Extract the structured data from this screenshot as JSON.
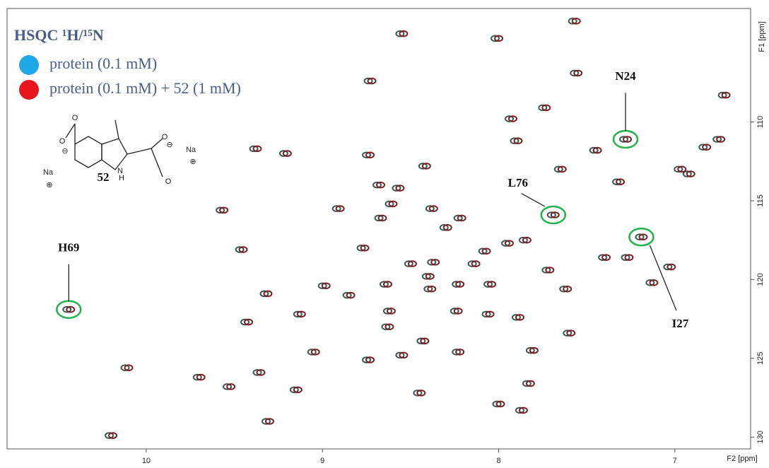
{
  "chart_data": {
    "type": "scatter",
    "legend_title": "HSQC ¹H/¹⁵N",
    "xlabel": "F2 [ppm]",
    "ylabel": "F1 [ppm]",
    "xlim": [
      10.79,
      6.57
    ],
    "ylim": [
      102.8,
      130.75
    ],
    "xticks": [
      10,
      9,
      8,
      7
    ],
    "yticks": [
      110,
      115,
      120,
      125,
      130
    ],
    "series": [
      {
        "name": "protein (0.1 mM)",
        "color": "#1fa8e8",
        "contour_color": "#3d5656",
        "x": [
          8.56,
          8.02,
          7.58,
          8.74,
          7.57,
          7.75,
          7.94,
          7.91,
          6.73,
          7.29,
          6.76,
          6.84,
          7.46,
          9.39,
          9.22,
          8.75,
          8.43,
          7.66,
          6.98,
          6.93,
          7.33,
          8.58,
          8.69,
          9.58,
          8.92,
          8.62,
          8.39,
          8.68,
          8.31,
          8.23,
          7.7,
          7.96,
          7.86,
          7.2,
          9.47,
          8.78,
          8.51,
          8.38,
          8.15,
          8.09,
          7.73,
          7.41,
          7.28,
          7.04,
          7.63,
          7.14,
          8.41,
          8.24,
          8.06,
          9.33,
          9.0,
          8.65,
          8.4,
          8.86,
          9.14,
          8.63,
          8.25,
          8.07,
          7.9,
          9.44,
          8.64,
          8.44,
          7.61,
          9.06,
          8.75,
          8.56,
          8.24,
          7.82,
          10.12,
          9.71,
          9.37,
          9.54,
          9.16,
          8.46,
          7.84,
          8.01,
          7.88,
          9.32,
          10.21,
          10.45
        ],
        "values": [
          104.4,
          104.7,
          103.6,
          107.4,
          106.9,
          109.1,
          109.8,
          111.2,
          108.3,
          111.1,
          111.1,
          111.6,
          111.8,
          111.7,
          112.0,
          112.1,
          112.8,
          113.0,
          113.0,
          113.3,
          113.8,
          114.2,
          114.0,
          115.6,
          115.5,
          115.2,
          115.5,
          116.1,
          116.7,
          116.1,
          115.9,
          117.7,
          117.5,
          117.3,
          118.1,
          118.0,
          119.0,
          118.9,
          119.0,
          118.2,
          119.4,
          118.6,
          118.6,
          119.2,
          120.6,
          120.2,
          119.8,
          120.3,
          120.3,
          120.9,
          120.4,
          120.3,
          120.6,
          121.0,
          122.2,
          122.0,
          122.0,
          122.2,
          122.4,
          122.7,
          123.0,
          123.9,
          123.4,
          124.6,
          125.1,
          124.8,
          124.6,
          124.5,
          125.6,
          126.2,
          125.9,
          126.8,
          127.0,
          127.2,
          126.6,
          127.9,
          128.3,
          129.0,
          129.9,
          121.9
        ]
      },
      {
        "name": "protein (0.1 mM) + 52  (1 mM)",
        "color": "#e8141c",
        "contour_color": "#7a1f24",
        "x": [
          8.54,
          8.0,
          7.56,
          8.72,
          7.55,
          7.73,
          7.92,
          7.89,
          6.71,
          7.27,
          6.74,
          6.82,
          7.44,
          9.37,
          9.2,
          8.73,
          8.41,
          7.64,
          6.96,
          6.91,
          7.31,
          8.56,
          8.67,
          9.56,
          8.9,
          8.6,
          8.37,
          8.66,
          8.29,
          8.21,
          7.68,
          7.94,
          7.84,
          7.18,
          9.45,
          8.76,
          8.49,
          8.36,
          8.13,
          8.07,
          7.71,
          7.39,
          7.26,
          7.02,
          7.61,
          7.12,
          8.39,
          8.22,
          8.04,
          9.31,
          8.98,
          8.63,
          8.38,
          8.84,
          9.12,
          8.61,
          8.23,
          8.05,
          7.88,
          9.42,
          8.62,
          8.42,
          7.59,
          9.04,
          8.73,
          8.54,
          8.22,
          7.8,
          10.1,
          9.69,
          9.35,
          9.52,
          9.14,
          8.44,
          7.82,
          7.99,
          7.86,
          9.3,
          10.19,
          10.43
        ],
        "values": [
          104.4,
          104.7,
          103.6,
          107.4,
          106.9,
          109.1,
          109.8,
          111.2,
          108.3,
          111.1,
          111.1,
          111.6,
          111.8,
          111.7,
          112.0,
          112.1,
          112.8,
          113.0,
          113.0,
          113.3,
          113.8,
          114.2,
          114.0,
          115.6,
          115.5,
          115.2,
          115.5,
          116.1,
          116.7,
          116.1,
          115.9,
          117.7,
          117.5,
          117.3,
          118.1,
          118.0,
          119.0,
          118.9,
          119.0,
          118.2,
          119.4,
          118.6,
          118.6,
          119.2,
          120.6,
          120.2,
          119.8,
          120.3,
          120.3,
          120.9,
          120.4,
          120.3,
          120.6,
          121.0,
          122.2,
          122.0,
          122.0,
          122.2,
          122.4,
          122.7,
          123.0,
          123.9,
          123.4,
          124.6,
          125.1,
          124.8,
          124.6,
          124.5,
          125.6,
          126.2,
          125.9,
          126.8,
          127.0,
          127.2,
          126.6,
          127.9,
          128.3,
          129.0,
          129.9,
          121.9
        ]
      }
    ],
    "annotations": [
      {
        "text": "N24",
        "x": 7.28,
        "y": 111.1
      },
      {
        "text": "L76",
        "x": 7.69,
        "y": 115.9
      },
      {
        "text": "I27",
        "x": 7.19,
        "y": 117.3
      },
      {
        "text": "H69",
        "x": 10.44,
        "y": 121.9
      }
    ],
    "structure": {
      "label": "52",
      "atoms": [
        "O",
        "O",
        "⊖",
        "Na",
        "⊕",
        "O",
        "O",
        "⊖",
        "Na",
        "⊕",
        "N",
        "H"
      ]
    }
  }
}
